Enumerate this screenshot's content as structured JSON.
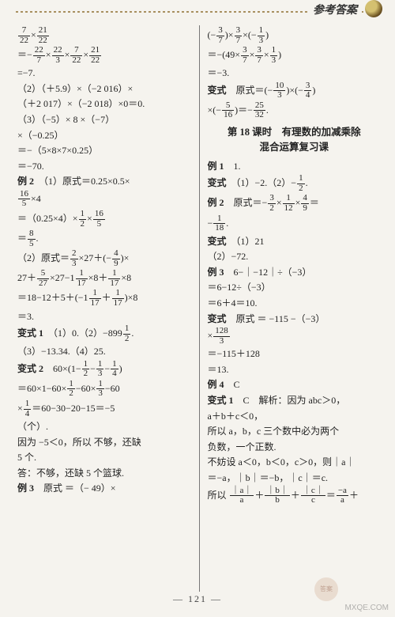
{
  "header": {
    "title": "参考答案"
  },
  "footer": {
    "page": "— 121 —"
  },
  "watermark": {
    "badge": "答案",
    "url": "MXQE.COM"
  },
  "left": {
    "l1a": "7",
    "l1b": "22",
    "l1c": "21",
    "l1d": "22",
    "l2a": "22",
    "l2b": "7",
    "l2c": "22",
    "l2d": "3",
    "l2e": "7",
    "l2f": "22",
    "l2g": "21",
    "l2h": "22",
    "l3": "=−7.",
    "l4": "（2）（＋5.9）×（−2 016）×",
    "l5": "（＋2 017）×（−2 018）×0＝0.",
    "l6": "（3）（−5）× 8 ×（−7）",
    "l7": "×（−0.25）",
    "l8": "＝−（5×8×7×0.25）",
    "l9": "＝−70.",
    "ex2": "例 2",
    "l10": "（1）原式＝0.25×0.5×",
    "l11a": "16",
    "l11b": "5",
    "l11c": "×4",
    "l12a": "＝（0.25×4）×",
    "l12n1": "1",
    "l12d1": "2",
    "l12x": "×",
    "l12n2": "16",
    "l12d2": "5",
    "l13eq": "＝",
    "l13n": "8",
    "l13d": "5",
    "l13dot": ".",
    "l14a": "（2）原式＝",
    "l14n1": "2",
    "l14d1": "3",
    "l14b": "×27＋",
    "l14p1": "(",
    "l14m": "−",
    "l14n2": "4",
    "l14d2": "9",
    "l14p2": ")",
    "l14x": "×",
    "l15a": "27＋",
    "l15n1": "5",
    "l15d1": "27",
    "l15b": "×27−1",
    "l15n2": "1",
    "l15d2": "17",
    "l15c": "×8＋",
    "l15n3": "1",
    "l15d3": "17",
    "l15d": "×8",
    "l16a": "＝18−12＋5＋",
    "l16p1": "(",
    "l16b": "−1",
    "l16n1": "1",
    "l16d1": "17",
    "l16c": "＋",
    "l16n2": "1",
    "l16d2": "17",
    "l16p2": ")",
    "l16x": "×8",
    "l17": "＝3.",
    "bs1": "变式 1",
    "l18a": "（1）0.（2）−899",
    "l18n": "1",
    "l18d": "2",
    "l18dot": ".",
    "l19": "（3）−13.34.（4）25.",
    "bs2": "变式 2",
    "l20a": "60×",
    "l20p1": "(",
    "l20b": "1−",
    "l20n1": "1",
    "l20d1": "2",
    "l20c": "−",
    "l20n2": "1",
    "l20d2": "3",
    "l20d": "−",
    "l20n3": "1",
    "l20d3": "4",
    "l20p2": ")",
    "l21a": "＝60×1−60×",
    "l21n1": "1",
    "l21d1": "2",
    "l21b": "−60×",
    "l21n2": "1",
    "l21d2": "3",
    "l21c": "−60",
    "l22a": "×",
    "l22n": "1",
    "l22d": "4",
    "l22b": "＝60−30−20−15＝−5",
    "l23": "（个）.",
    "l24": "因为 −5＜0，所以 不够，还缺",
    "l25": "5 个.",
    "l26": "答：不够，还缺 5 个篮球.",
    "ex3": "例 3",
    "l27": "原式 ＝（− 49）×"
  },
  "right": {
    "r1p1": "(",
    "r1m1": "−",
    "r1n1": "3",
    "r1d1": "7",
    "r1p2": ")",
    "r1x1": "×",
    "r1n2": "3",
    "r1d2": "7",
    "r1x2": "×",
    "r1p3": "(",
    "r1m2": "−",
    "r1n3": "1",
    "r1d3": "3",
    "r1p4": ")",
    "r2a": "＝−",
    "r2p1": "(",
    "r2b": "49×",
    "r2n1": "3",
    "r2d1": "7",
    "r2c": "×",
    "r2n2": "3",
    "r2d2": "7",
    "r2d": "×",
    "r2n3": "1",
    "r2d3": "3",
    "r2p2": ")",
    "r3": "＝−3.",
    "bs": "变式",
    "r4a": "原式＝",
    "r4p1": "(",
    "r4m": "−",
    "r4n1": "10",
    "r4d1": "3",
    "r4p2": ")",
    "r4x": "×",
    "r4p3": "(",
    "r4m2": "−",
    "r4n2": "3",
    "r4d2": "4",
    "r4p4": ")",
    "r5a": "×",
    "r5p1": "(",
    "r5m": "−",
    "r5n1": "5",
    "r5d1": "16",
    "r5p2": ")",
    "r5b": "＝−",
    "r5n2": "25",
    "r5d2": "32",
    "r5dot": ".",
    "sectT1": "第 18 课时　有理数的加减乘除",
    "sectT2": "混合运算复习课",
    "ex1r": "例 1",
    "r6": "1.",
    "bsr1": "变式",
    "r7a": "（1）−2.（2）−",
    "r7n": "1",
    "r7d": "2",
    "r7dot": ".",
    "ex2r": "例 2",
    "r8a": "原式＝−",
    "r8n1": "3",
    "r8d1": "2",
    "r8b": "×",
    "r8n2": "1",
    "r8d2": "12",
    "r8c": "×",
    "r8n3": "4",
    "r8d3": "9",
    "r8d": "＝",
    "r9a": "−",
    "r9n": "1",
    "r9d": "18",
    "r9dot": ".",
    "bsr2": "变式",
    "r10": "（1）21",
    "r11": "（2）−72.",
    "ex3r": "例 3",
    "r12": "6−｜−12｜÷（−3）",
    "r13": "＝6−12÷（−3）",
    "r14": "＝6＋4＝10.",
    "bsr3": "变式",
    "r15": "原式 ＝ −115 −（−3）",
    "r16a": "×",
    "r16n": "128",
    "r16d": "3",
    "r17": "＝−115＋128",
    "r18": "＝13.",
    "ex4r": "例 4",
    "r19": "C",
    "bsr4": "变式 1",
    "r20": "C　解析：因为 abc＞0，",
    "r21": "a＋b＋c＜0，",
    "r22": "所以 a，b，c 三个数中必为两个",
    "r23": "负数，一个正数.",
    "r24": "不妨设 a＜0，b＜0，c＞0，则｜a｜",
    "r25": "＝−a，｜b｜＝−b，｜c｜＝c.",
    "r26a": "所以 ",
    "r26n1": "｜a｜",
    "r26d1": "a",
    "r26p": "＋",
    "r26n2": "｜b｜",
    "r26d2": "b",
    "r26p2": "＋",
    "r26n3": "｜c｜",
    "r26d3": "c",
    "r26e": "＝",
    "r26n4": "−a",
    "r26d4": "a",
    "r26p3": "＋"
  }
}
